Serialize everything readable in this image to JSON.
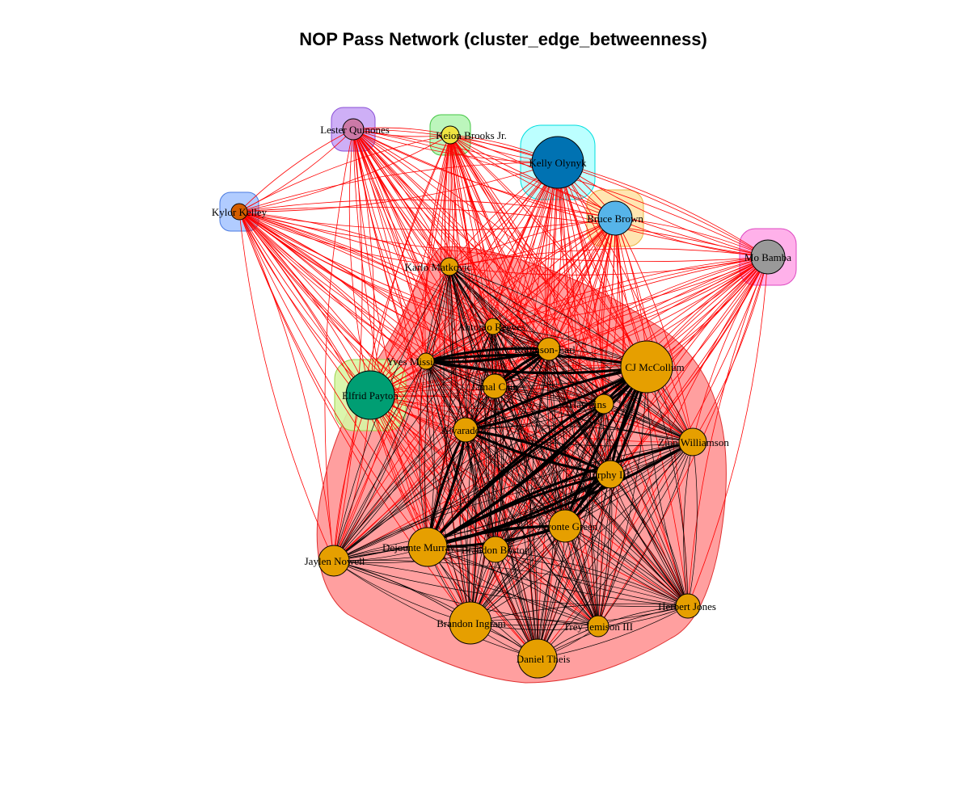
{
  "title": "NOP Pass Network (cluster_edge_betweenness)",
  "colors": {
    "main_cluster_fill": "#ff9f9f",
    "main_cluster_stroke": "#e03030",
    "main_node": "#e69f00",
    "inter_edge": "#ff0000",
    "intra_edge": "#000000"
  },
  "nodes": [
    {
      "id": "lester",
      "label": "Lester Quinones",
      "color": "#cc79a7",
      "cluster_fill": "#c9a6f5",
      "cluster_stroke": "#8a4fd6",
      "size": "small"
    },
    {
      "id": "keion",
      "label": "Keion Brooks Jr.",
      "color": "#f0e442",
      "cluster_fill": "#b5f5b5",
      "cluster_stroke": "#45c645",
      "size": "small"
    },
    {
      "id": "kelly",
      "label": "Kelly Olynyk",
      "color": "#0072b2",
      "cluster_fill": "#b5ffff",
      "cluster_stroke": "#00dede",
      "size": "large"
    },
    {
      "id": "kylor",
      "label": "Kylor Kelley",
      "color": "#d55e00",
      "cluster_fill": "#a9c7ff",
      "cluster_stroke": "#4a7ae0",
      "size": "small"
    },
    {
      "id": "bruce",
      "label": "Bruce Brown",
      "color": "#56b4e9",
      "cluster_fill": "#ffe3a8",
      "cluster_stroke": "#e8b544",
      "size": "medium"
    },
    {
      "id": "mo",
      "label": "Mo Bamba",
      "color": "#999999",
      "cluster_fill": "#ffa8e8",
      "cluster_stroke": "#de49c2",
      "size": "medium"
    },
    {
      "id": "elfrid",
      "label": "Elfrid Payton",
      "color": "#009e73",
      "cluster_fill": "#d7f5a4",
      "cluster_stroke": "#9bd14a",
      "size": "large"
    },
    {
      "id": "karlo",
      "label": "Karlo Matkovic",
      "color": "#e69f00",
      "size": "small"
    },
    {
      "id": "antonio",
      "label": "Antonio Reeves",
      "color": "#e69f00",
      "size": "small"
    },
    {
      "id": "robinson",
      "label": "Robinson-Earl",
      "color": "#e69f00",
      "size": "small"
    },
    {
      "id": "yves",
      "label": "Yves Missi",
      "color": "#e69f00",
      "size": "small"
    },
    {
      "id": "cj",
      "label": "CJ McCollum",
      "color": "#e69f00",
      "size": "large"
    },
    {
      "id": "jamal",
      "label": "Jamal Cain",
      "color": "#e69f00",
      "size": "small"
    },
    {
      "id": "hawkins",
      "label": "Hawkins",
      "color": "#e69f00",
      "size": "small"
    },
    {
      "id": "alvarado",
      "label": "Alvarado",
      "color": "#e69f00",
      "size": "small"
    },
    {
      "id": "zion",
      "label": "Zion Williamson",
      "color": "#e69f00",
      "size": "small"
    },
    {
      "id": "murphy",
      "label": "Murphy III",
      "color": "#e69f00",
      "size": "small"
    },
    {
      "id": "green",
      "label": "Javonte Green",
      "color": "#e69f00",
      "size": "medium"
    },
    {
      "id": "dejounte",
      "label": "Dejounte Murray",
      "color": "#e69f00",
      "size": "large"
    },
    {
      "id": "boston",
      "label": "Brandon Boston",
      "color": "#e69f00",
      "size": "small"
    },
    {
      "id": "jaylen",
      "label": "Jaylen Nowell",
      "color": "#e69f00",
      "size": "small"
    },
    {
      "id": "herbert",
      "label": "Herbert Jones",
      "color": "#e69f00",
      "size": "small"
    },
    {
      "id": "ingram",
      "label": "Brandon Ingram",
      "color": "#e69f00",
      "size": "large"
    },
    {
      "id": "jemison",
      "label": "Trey Jemison III",
      "color": "#e69f00",
      "size": "small"
    },
    {
      "id": "theis",
      "label": "Daniel Theis",
      "color": "#e69f00",
      "size": "large"
    }
  ]
}
